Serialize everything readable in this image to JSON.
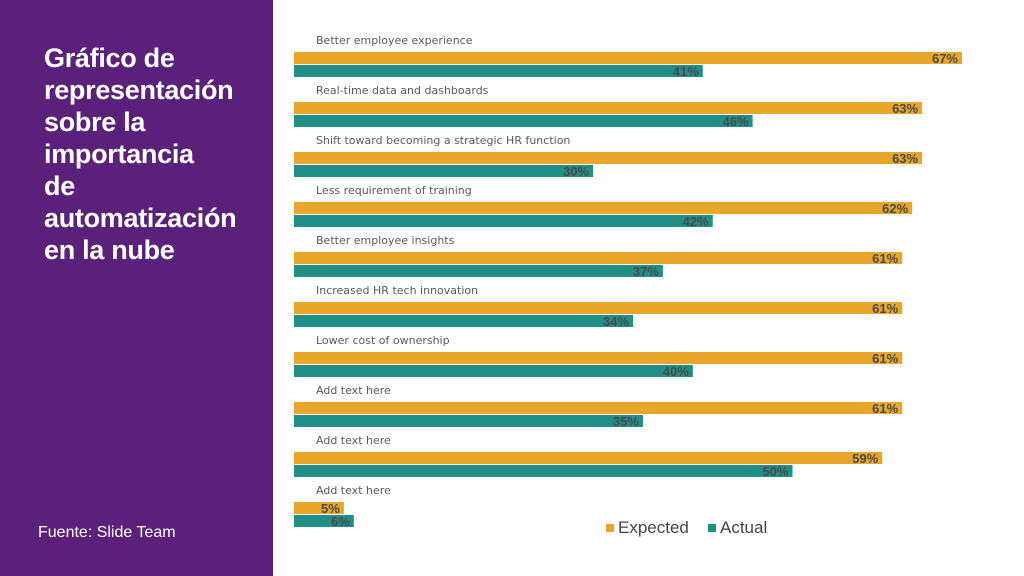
{
  "sidebar": {
    "title_lines": [
      "Gráfico de",
      "representación",
      "sobre la",
      "importancia",
      "de",
      "automatización",
      "en la nube"
    ],
    "source": "Fuente: Slide Team"
  },
  "colors": {
    "sidebar_bg": "#5b2079",
    "expected": "#e8a72a",
    "actual": "#1f8f87"
  },
  "chart_data": {
    "type": "bar",
    "orientation": "horizontal",
    "categories": [
      "Better employee experience",
      "Real-time data and dashboards",
      "Shift toward becoming a strategic HR function",
      "Less requirement of training",
      "Better employee insights",
      "Increased HR tech innovation",
      "Lower cost of ownership",
      "Add text here",
      "Add text here",
      "Add text here"
    ],
    "series": [
      {
        "name": "Expected",
        "values": [
          67,
          63,
          63,
          62,
          61,
          61,
          61,
          61,
          59,
          5
        ]
      },
      {
        "name": "Actual",
        "values": [
          41,
          46,
          30,
          42,
          37,
          34,
          40,
          35,
          50,
          6
        ]
      }
    ],
    "value_suffix": "%",
    "xlim": [
      0,
      67
    ],
    "grid": false,
    "legend_position": "bottom-right"
  }
}
